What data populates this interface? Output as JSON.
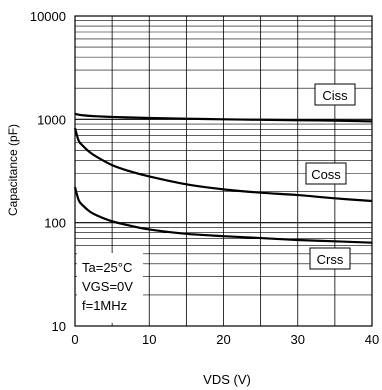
{
  "chart_data": {
    "type": "line",
    "xlabel": "VDS (V)",
    "ylabel": "Capacitance (pF)",
    "x_scale": "linear",
    "y_scale": "log",
    "xlim": [
      0,
      40
    ],
    "ylim": [
      10,
      10000
    ],
    "x_ticks": [
      "0",
      "10",
      "20",
      "30",
      "40"
    ],
    "y_ticks": [
      "10",
      "100",
      "1000",
      "10000"
    ],
    "grid": true,
    "conditions": [
      "Ta=25°C",
      "VGS=0V",
      "f=1MHz"
    ],
    "series": [
      {
        "name": "Ciss",
        "x": [
          0,
          0.5,
          1,
          2,
          3,
          5,
          7,
          10,
          15,
          20,
          25,
          30,
          35,
          40
        ],
        "y": [
          1130,
          1110,
          1095,
          1080,
          1070,
          1055,
          1045,
          1030,
          1015,
          1000,
          990,
          980,
          970,
          955
        ]
      },
      {
        "name": "Coss",
        "x": [
          0,
          0.5,
          1,
          2,
          3,
          5,
          7,
          10,
          15,
          20,
          25,
          30,
          35,
          40
        ],
        "y": [
          820,
          620,
          560,
          480,
          430,
          360,
          320,
          280,
          235,
          210,
          195,
          185,
          172,
          162
        ]
      },
      {
        "name": "Crss",
        "x": [
          0,
          0.5,
          1,
          2,
          3,
          5,
          7,
          10,
          15,
          20,
          25,
          30,
          35,
          40
        ],
        "y": [
          220,
          165,
          148,
          128,
          117,
          103,
          95,
          86,
          78,
          74,
          71,
          68,
          66,
          64
        ]
      }
    ]
  }
}
